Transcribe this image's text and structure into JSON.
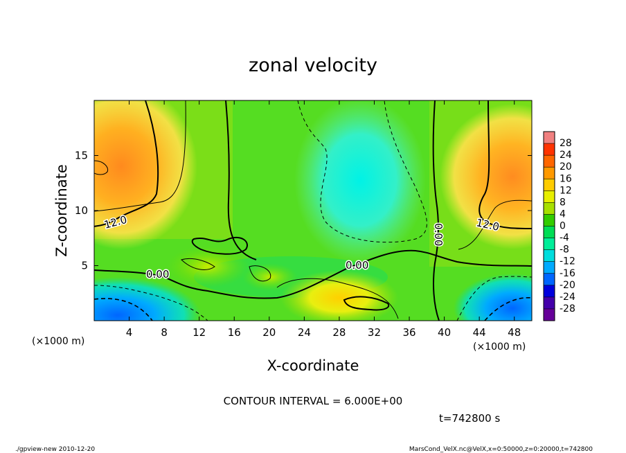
{
  "chart_data": {
    "type": "heatmap",
    "title": "zonal velocity",
    "xlabel": "X-coordinate",
    "ylabel": "Z-coordinate",
    "x_unit": "(×1000 m)",
    "z_unit": "(×1000 m)",
    "xlim": [
      0,
      50
    ],
    "ylim": [
      0,
      20
    ],
    "x_ticks": [
      4,
      8,
      12,
      16,
      20,
      24,
      28,
      32,
      36,
      40,
      44,
      48
    ],
    "y_ticks": [
      5,
      10,
      15
    ],
    "colorbar_ticks": [
      28,
      24,
      20,
      16,
      12,
      8,
      4,
      0,
      -4,
      -8,
      -12,
      -16,
      -20,
      -24,
      -28
    ],
    "colorbar_colors": [
      "#f08080",
      "#ff3300",
      "#ff6600",
      "#ff9900",
      "#ffcc00",
      "#e8ef00",
      "#a8e000",
      "#33cc00",
      "#00dd55",
      "#00ee99",
      "#00dddd",
      "#00aaff",
      "#0066ff",
      "#0000dd",
      "#4400aa",
      "#660099"
    ],
    "contour_labels": [
      "12.0",
      "0.00",
      "12.0",
      "0.00",
      "0.00"
    ],
    "contour_interval_text": "CONTOUR INTERVAL = 6.000E+00",
    "time_text": "t=742800 s",
    "footer_left": "./gpview-new  2010-12-20",
    "footer_right": "MarsCond_VelX.nc@VelX,x=0:50000,z=0:20000,t=742800",
    "field_samples": [
      {
        "x": 1,
        "z": 14,
        "v": 18
      },
      {
        "x": 3,
        "z": 12,
        "v": 14
      },
      {
        "x": 48,
        "z": 14,
        "v": 17
      },
      {
        "x": 46,
        "z": 11,
        "v": 14
      },
      {
        "x": 31,
        "z": 14,
        "v": -10
      },
      {
        "x": 30,
        "z": 9,
        "v": -6
      },
      {
        "x": 1,
        "z": 1,
        "v": -14
      },
      {
        "x": 48,
        "z": 1,
        "v": -12
      },
      {
        "x": 30,
        "z": 1.5,
        "v": 12
      },
      {
        "x": 20,
        "z": 7,
        "v": 4
      },
      {
        "x": 10,
        "z": 3,
        "v": -4
      }
    ]
  }
}
